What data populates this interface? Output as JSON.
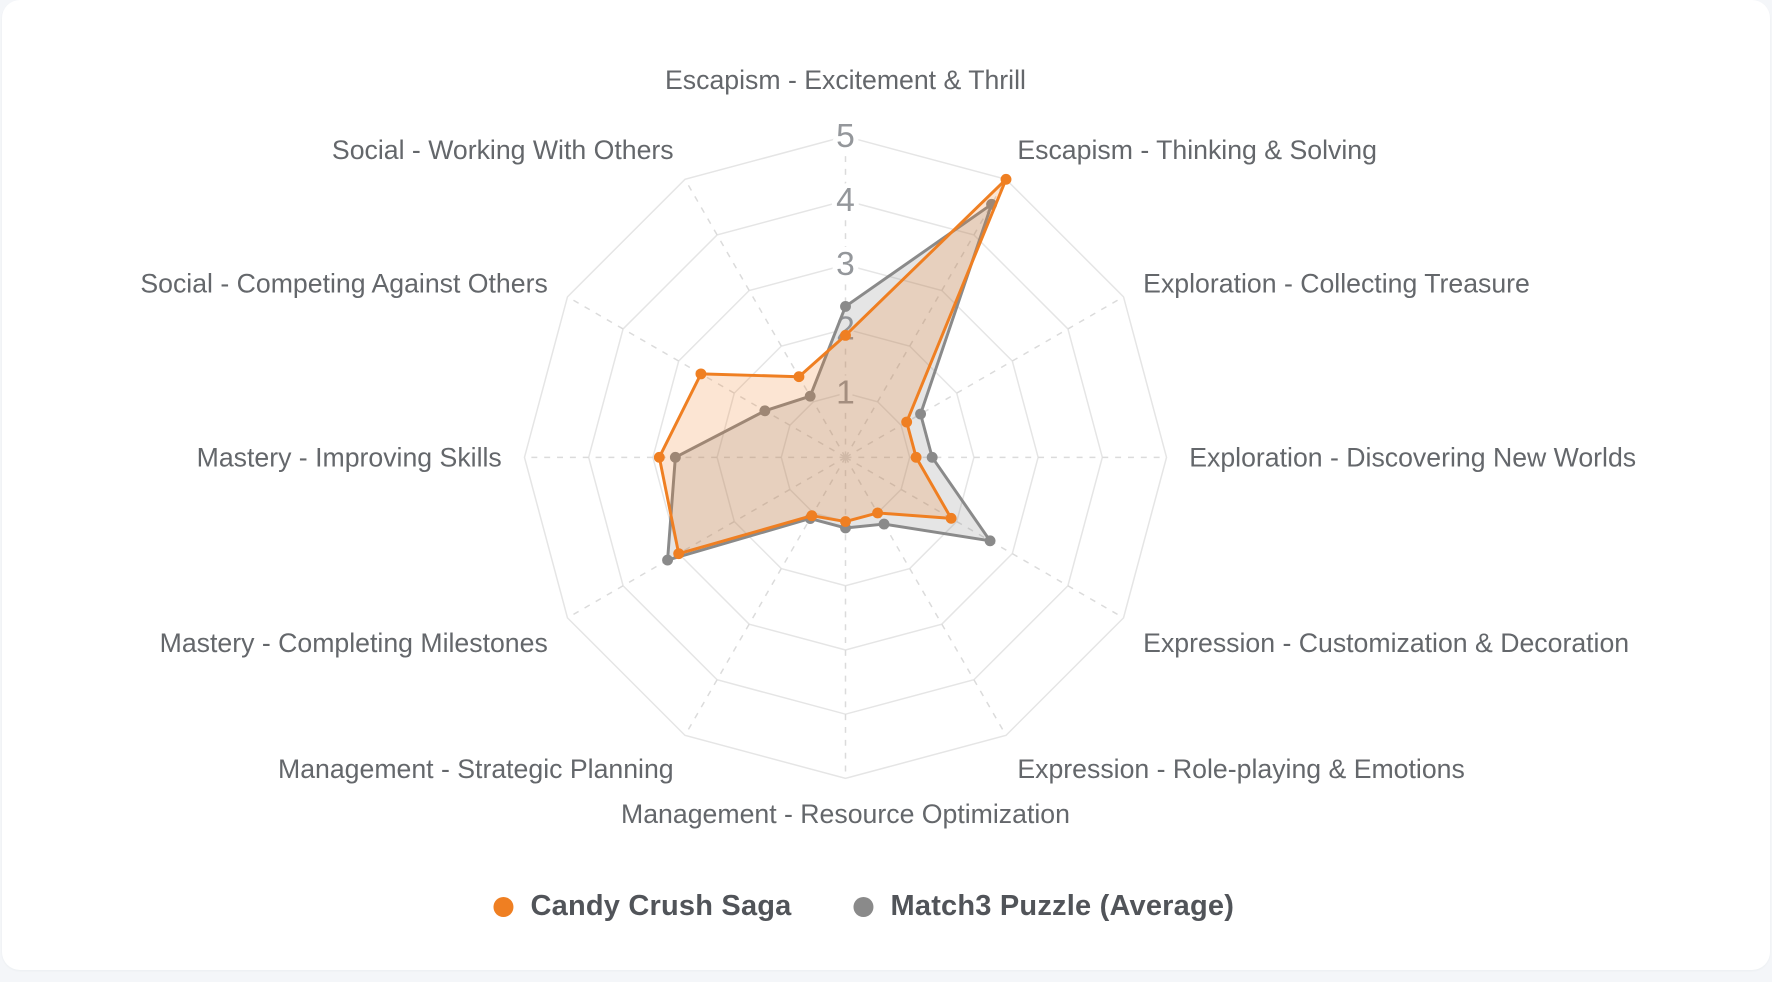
{
  "page": {
    "background_color": "#f4f6f9",
    "card_color": "#ffffff"
  },
  "chart_data": {
    "type": "radar",
    "start_axis": "top",
    "direction": "clockwise",
    "categories": [
      "Escapism - Excitement & Thrill",
      "Escapism - Thinking & Solving",
      "Exploration - Collecting Treasure",
      "Exploration - Discovering New Worlds",
      "Expression - Customization & Decoration",
      "Expression - Role-playing & Emotions",
      "Management - Resource Optimization",
      "Management - Strategic Planning",
      "Mastery - Completing Milestones",
      "Mastery - Improving Skills",
      "Social - Competing Against Others",
      "Social - Working With Others"
    ],
    "series": [
      {
        "name": "Candy Crush Saga",
        "color": "#EF7F22",
        "fill": "rgba(239,127,34,0.2)",
        "values": [
          1.9,
          5.0,
          1.1,
          1.1,
          1.9,
          1.0,
          1.0,
          1.05,
          3.0,
          2.9,
          2.6,
          1.45
        ]
      },
      {
        "name": "Match3 Puzzle (Average)",
        "color": "#8A8A8A",
        "fill": "rgba(138,138,138,0.22)",
        "values": [
          2.35,
          4.55,
          1.35,
          1.35,
          2.6,
          1.2,
          1.1,
          1.1,
          3.2,
          2.65,
          1.45,
          1.1
        ]
      }
    ],
    "scale": {
      "min": 0,
      "max": 5,
      "ticks": [
        1,
        2,
        3,
        4,
        5
      ]
    },
    "grid": {
      "ring_color": "#E5E5E5",
      "spoke_color": "#DBDBDB",
      "spokes_dashed": true,
      "shape": "polygon"
    },
    "label_color": "#64676b",
    "tick_color": "#94979b",
    "legend_position": "bottom"
  }
}
